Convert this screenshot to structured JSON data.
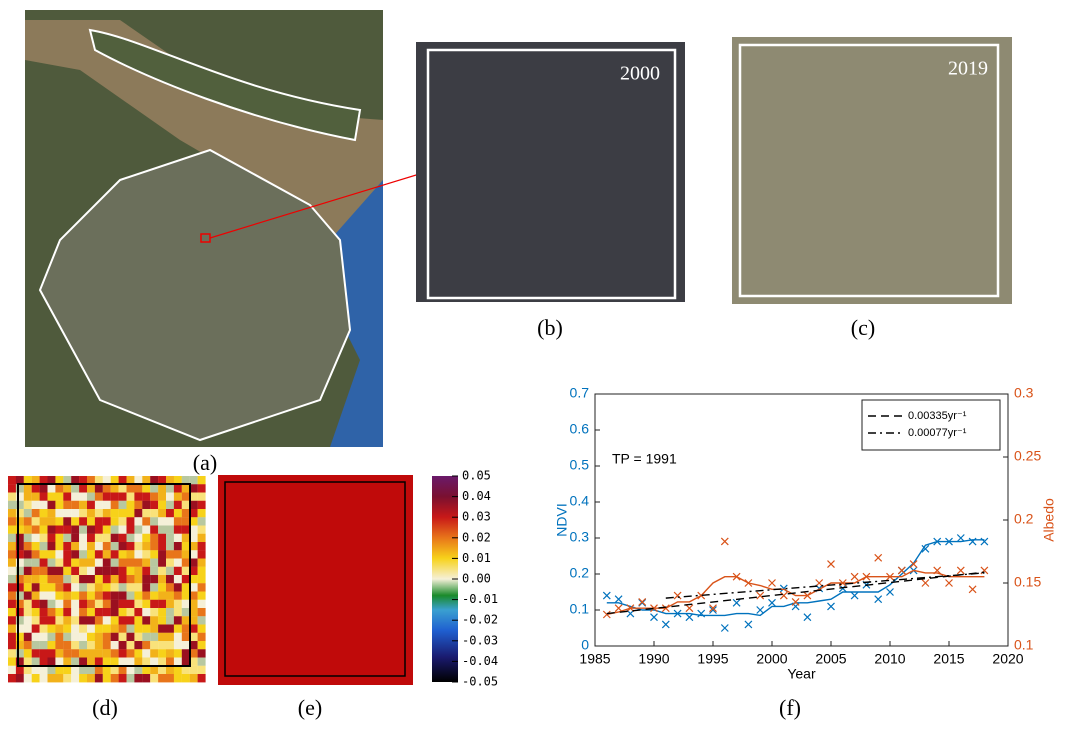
{
  "panels": {
    "a": {
      "label": "(a)"
    },
    "b": {
      "label": "(b)",
      "year": "2000"
    },
    "c": {
      "label": "(c)",
      "year": "2019"
    },
    "d": {
      "label": "(d)"
    },
    "e": {
      "label": "(e)"
    }
  },
  "colorbar": {
    "clim": [
      -0.05,
      0.05
    ],
    "ticks": [
      {
        "value": 0.05,
        "label": "0.05"
      },
      {
        "value": 0.04,
        "label": "0.04"
      },
      {
        "value": 0.03,
        "label": "0.03"
      },
      {
        "value": 0.02,
        "label": "0.02"
      },
      {
        "value": 0.01,
        "label": "0.01"
      },
      {
        "value": 0,
        "label": "0.00"
      },
      {
        "value": -0.01,
        "label": "-0.01"
      },
      {
        "value": -0.02,
        "label": "-0.02"
      },
      {
        "value": -0.03,
        "label": "-0.03"
      },
      {
        "value": -0.04,
        "label": "-0.04"
      },
      {
        "value": -0.05,
        "label": "-0.05"
      }
    ]
  },
  "chart_data": {
    "type": "line",
    "panel_label": "(f)",
    "xlabel": "Year",
    "ylabel": "NDVI",
    "y2label": "Albedo",
    "annotation": "TP = 1991",
    "x": [
      1986,
      1987,
      1988,
      1989,
      1990,
      1991,
      1992,
      1993,
      1994,
      1995,
      1996,
      1997,
      1998,
      1999,
      2000,
      2001,
      2002,
      2003,
      2004,
      2005,
      2006,
      2007,
      2008,
      2009,
      2010,
      2011,
      2012,
      2013,
      2014,
      2015,
      2016,
      2017,
      2018
    ],
    "xlim": [
      1985,
      2020
    ],
    "xticks": [
      1985,
      1990,
      1995,
      2000,
      2005,
      2010,
      2015,
      2020
    ],
    "ylim": [
      0,
      0.7
    ],
    "yticks": [
      0,
      0.1,
      0.2,
      0.3,
      0.4,
      0.5,
      0.6,
      0.7
    ],
    "y2lim": [
      0.1,
      0.3
    ],
    "y2ticks": [
      0.1,
      0.15,
      0.2,
      0.25,
      0.3
    ],
    "series": [
      {
        "color": "#0072bd",
        "marker": "x",
        "values": [
          0.14,
          0.13,
          0.09,
          0.12,
          0.08,
          0.06,
          0.09,
          0.08,
          0.09,
          0.1,
          0.05,
          0.12,
          0.06,
          0.1,
          0.12,
          0.16,
          0.11,
          0.08,
          0.16,
          0.11,
          0.16,
          0.14,
          0.17,
          0.13,
          0.15,
          0.21,
          0.21,
          0.27,
          0.29,
          0.29,
          0.3,
          0.29,
          0.29
        ]
      },
      {
        "color": "#0072bd",
        "values": [
          0.12,
          0.12,
          0.11,
          0.1,
          0.1,
          0.09,
          0.09,
          0.09,
          0.085,
          0.085,
          0.085,
          0.09,
          0.09,
          0.085,
          0.11,
          0.11,
          0.12,
          0.12,
          0.125,
          0.13,
          0.15,
          0.15,
          0.15,
          0.15,
          0.17,
          0.2,
          0.23,
          0.28,
          0.29,
          0.29,
          0.29,
          0.295,
          0.295
        ]
      },
      {
        "color": "#d95319",
        "marker": "x",
        "axis": "y2",
        "values": [
          0.125,
          0.13,
          0.13,
          0.135,
          0.13,
          0.13,
          0.14,
          0.13,
          0.14,
          0.13,
          0.183,
          0.155,
          0.15,
          0.14,
          0.15,
          0.14,
          0.135,
          0.14,
          0.15,
          0.165,
          0.15,
          0.155,
          0.155,
          0.17,
          0.155,
          0.16,
          0.165,
          0.15,
          0.16,
          0.15,
          0.16,
          0.145,
          0.16
        ]
      },
      {
        "color": "#d95319",
        "axis": "y2",
        "values": [
          0.125,
          0.127,
          0.13,
          0.13,
          0.13,
          0.13,
          0.135,
          0.135,
          0.14,
          0.15,
          0.155,
          0.155,
          0.15,
          0.148,
          0.145,
          0.145,
          0.14,
          0.14,
          0.145,
          0.15,
          0.15,
          0.15,
          0.155,
          0.155,
          0.155,
          0.155,
          0.16,
          0.158,
          0.158,
          0.155,
          0.155,
          0.155,
          0.155
        ]
      },
      {
        "name": "0.00335yr⁻¹",
        "color": "#000000",
        "dash": "dashed",
        "x": [
          1986,
          2018
        ],
        "values": [
          0.09,
          0.205
        ]
      },
      {
        "name": "0.00077yr⁻¹",
        "color": "#000000",
        "dash": "dashdot",
        "axis": "y2",
        "x": [
          1991,
          2018
        ],
        "values": [
          0.138,
          0.158
        ]
      }
    ]
  }
}
